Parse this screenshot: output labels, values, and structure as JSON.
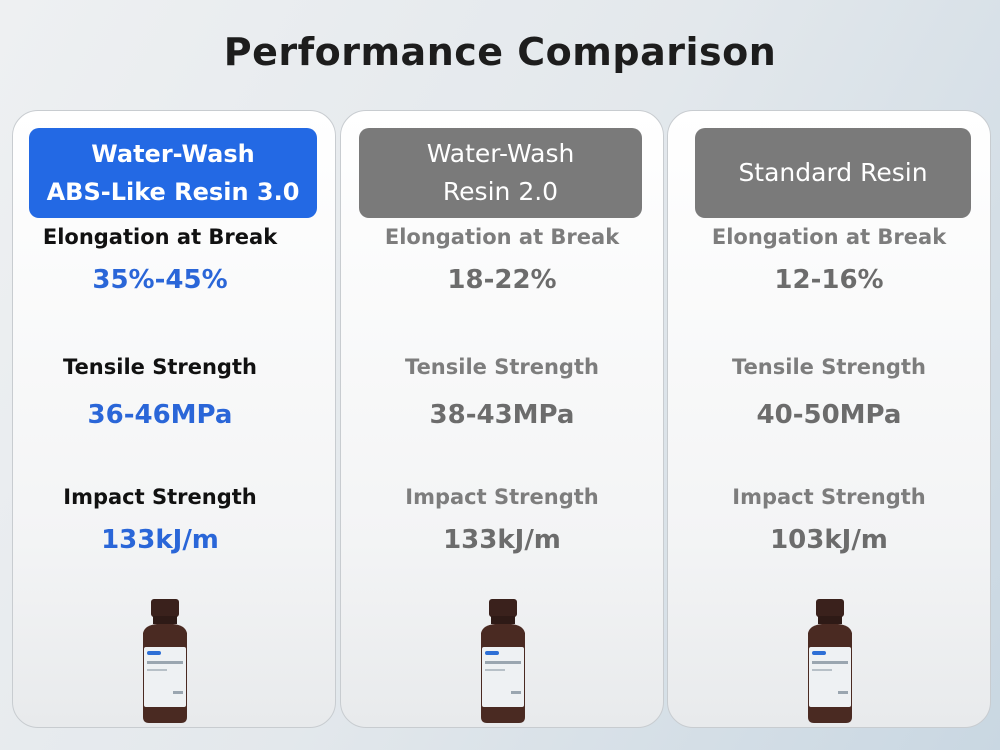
{
  "title": "Performance Comparison",
  "columns": [
    {
      "header": [
        "Water-Wash",
        "ABS-Like Resin 3.0"
      ],
      "rows": [
        {
          "label": "Elongation at Break",
          "value": "35%-45%"
        },
        {
          "label": "Tensile Strength",
          "value": "36-46MPa"
        },
        {
          "label": "Impact Strength",
          "value": "133kJ/m"
        }
      ]
    },
    {
      "header": [
        "Water-Wash",
        "Resin 2.0"
      ],
      "rows": [
        {
          "label": "Elongation at Break",
          "value": "18-22%"
        },
        {
          "label": "Tensile Strength",
          "value": "38-43MPa"
        },
        {
          "label": "Impact Strength",
          "value": "133kJ/m"
        }
      ]
    },
    {
      "header": [
        "Standard Resin"
      ],
      "rows": [
        {
          "label": "Elongation at Break",
          "value": "12-16%"
        },
        {
          "label": "Tensile Strength",
          "value": "40-50MPa"
        },
        {
          "label": "Impact Strength",
          "value": "103kJ/m"
        }
      ]
    }
  ]
}
